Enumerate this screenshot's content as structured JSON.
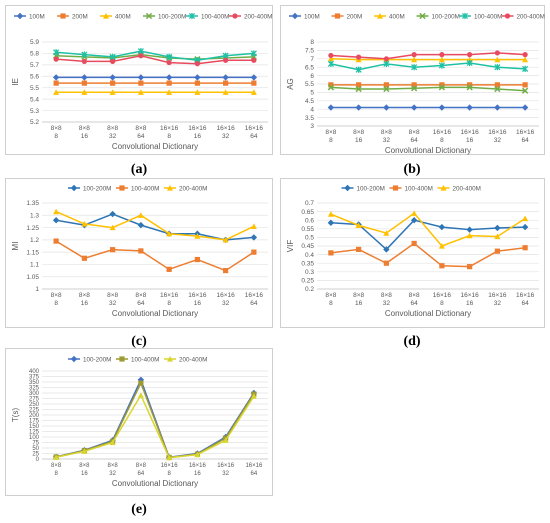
{
  "captions": [
    "(a)",
    "(b)",
    "(c)",
    "(d)",
    "(e)"
  ],
  "chart_data": [
    {
      "id": "a",
      "type": "line",
      "xlabel": "Convolutional Dictionary",
      "ylabel": "IE",
      "categories": [
        "8×8 8",
        "8×8 16",
        "8×8 32",
        "8×8 64",
        "16×16 8",
        "16×16 16",
        "16×16 32",
        "16×16 64"
      ],
      "ylim": [
        5.2,
        5.9
      ],
      "yticks": [
        "5.2",
        "5.3",
        "5.4",
        "5.5",
        "5.6",
        "5.7",
        "5.8",
        "5.9"
      ],
      "series": [
        {
          "name": "100M",
          "color": "#4472c4",
          "marker": "diamond",
          "values": [
            5.59,
            5.59,
            5.59,
            5.59,
            5.59,
            5.59,
            5.59,
            5.59
          ]
        },
        {
          "name": "200M",
          "color": "#ed7d31",
          "marker": "square",
          "values": [
            5.54,
            5.54,
            5.54,
            5.54,
            5.54,
            5.54,
            5.54,
            5.54
          ]
        },
        {
          "name": "400M",
          "color": "#ffc000",
          "marker": "triangle",
          "values": [
            5.46,
            5.46,
            5.46,
            5.46,
            5.46,
            5.46,
            5.46,
            5.46
          ]
        },
        {
          "name": "100-200M",
          "color": "#70ad47",
          "marker": "x",
          "values": [
            5.78,
            5.77,
            5.76,
            5.79,
            5.76,
            5.75,
            5.76,
            5.77
          ]
        },
        {
          "name": "100-400M",
          "color": "#1fc1a5",
          "marker": "star",
          "values": [
            5.81,
            5.79,
            5.77,
            5.82,
            5.77,
            5.74,
            5.78,
            5.8
          ]
        },
        {
          "name": "200-400M",
          "color": "#e84a5f",
          "marker": "circle",
          "values": [
            5.75,
            5.73,
            5.73,
            5.78,
            5.72,
            5.71,
            5.74,
            5.74
          ]
        }
      ]
    },
    {
      "id": "b",
      "type": "line",
      "xlabel": "Convolutional Dictionary",
      "ylabel": "AG",
      "categories": [
        "8×8 8",
        "8×8 16",
        "8×8 32",
        "8×8 64",
        "16×16 8",
        "16×16 16",
        "16×16 32",
        "16×16 64"
      ],
      "ylim": [
        3,
        8
      ],
      "yticks": [
        "3",
        "3.5",
        "4",
        "4.5",
        "5",
        "5.5",
        "6",
        "6.5",
        "7",
        "7.5",
        "8"
      ],
      "series": [
        {
          "name": "100M",
          "color": "#4472c4",
          "marker": "diamond",
          "values": [
            4.1,
            4.1,
            4.1,
            4.1,
            4.1,
            4.1,
            4.1,
            4.1
          ]
        },
        {
          "name": "200M",
          "color": "#ed7d31",
          "marker": "square",
          "values": [
            5.45,
            5.45,
            5.45,
            5.45,
            5.45,
            5.45,
            5.45,
            5.45
          ]
        },
        {
          "name": "400M",
          "color": "#ffc000",
          "marker": "triangle",
          "values": [
            7.0,
            6.95,
            6.95,
            6.95,
            6.95,
            6.95,
            6.95,
            6.95
          ]
        },
        {
          "name": "100-200M",
          "color": "#70ad47",
          "marker": "x",
          "values": [
            5.3,
            5.2,
            5.2,
            5.25,
            5.3,
            5.3,
            5.2,
            5.1
          ]
        },
        {
          "name": "100-400M",
          "color": "#1fc1a5",
          "marker": "star",
          "values": [
            6.7,
            6.35,
            6.7,
            6.5,
            6.6,
            6.75,
            6.5,
            6.4
          ]
        },
        {
          "name": "200-400M",
          "color": "#e84a5f",
          "marker": "circle",
          "values": [
            7.2,
            7.1,
            7.0,
            7.25,
            7.25,
            7.25,
            7.35,
            7.25
          ]
        }
      ]
    },
    {
      "id": "c",
      "type": "line",
      "xlabel": "Convolutional Dictionary",
      "ylabel": "MI",
      "categories": [
        "8×8 8",
        "8×8 16",
        "8×8 32",
        "8×8 64",
        "16×16 8",
        "16×16 16",
        "16×16 32",
        "16×16 64"
      ],
      "ylim": [
        1,
        1.35
      ],
      "yticks": [
        "1",
        "1.05",
        "1.1",
        "1.15",
        "1.2",
        "1.25",
        "1.3",
        "1.35"
      ],
      "series": [
        {
          "name": "100-200M",
          "color": "#2e75b6",
          "marker": "diamond",
          "values": [
            1.28,
            1.26,
            1.305,
            1.26,
            1.225,
            1.225,
            1.2,
            1.21
          ]
        },
        {
          "name": "100-400M",
          "color": "#ed7d31",
          "marker": "square",
          "values": [
            1.195,
            1.125,
            1.16,
            1.155,
            1.08,
            1.12,
            1.075,
            1.15
          ]
        },
        {
          "name": "200-400M",
          "color": "#ffc000",
          "marker": "triangle",
          "values": [
            1.315,
            1.265,
            1.25,
            1.3,
            1.225,
            1.215,
            1.2,
            1.255
          ]
        }
      ]
    },
    {
      "id": "d",
      "type": "line",
      "xlabel": "Convolutional Dictionary",
      "ylabel": "VIF",
      "categories": [
        "8×8 8",
        "8×8 16",
        "8×8 32",
        "8×8 64",
        "16×16 8",
        "16×16 16",
        "16×16 32",
        "16×16 64"
      ],
      "ylim": [
        0.2,
        0.7
      ],
      "yticks": [
        "0.2",
        "0.25",
        "0.3",
        "0.35",
        "0.4",
        "0.45",
        "0.5",
        "0.55",
        "0.6",
        "0.65",
        "0.7"
      ],
      "series": [
        {
          "name": "100-200M",
          "color": "#2e75b6",
          "marker": "diamond",
          "values": [
            0.585,
            0.575,
            0.43,
            0.6,
            0.56,
            0.545,
            0.555,
            0.56
          ]
        },
        {
          "name": "100-400M",
          "color": "#ed7d31",
          "marker": "square",
          "values": [
            0.41,
            0.43,
            0.35,
            0.465,
            0.335,
            0.33,
            0.42,
            0.44
          ]
        },
        {
          "name": "200-400M",
          "color": "#ffc000",
          "marker": "triangle",
          "values": [
            0.635,
            0.57,
            0.525,
            0.64,
            0.45,
            0.51,
            0.505,
            0.61
          ]
        }
      ]
    },
    {
      "id": "e",
      "type": "line",
      "xlabel": "Convolutional Dictionary",
      "ylabel": "T(s)",
      "categories": [
        "8×8 8",
        "8×8 16",
        "8×8 32",
        "8×8 64",
        "16×16 8",
        "16×16 16",
        "16×16 32",
        "16×16 64"
      ],
      "ylim": [
        0,
        400
      ],
      "yticks": [
        "0",
        "25",
        "50",
        "75",
        "100",
        "125",
        "150",
        "175",
        "200",
        "225",
        "250",
        "275",
        "300",
        "325",
        "350",
        "375",
        "400"
      ],
      "series": [
        {
          "name": "100-200M",
          "color": "#4472c4",
          "marker": "diamond",
          "values": [
            10,
            40,
            85,
            360,
            8,
            25,
            100,
            300
          ]
        },
        {
          "name": "100-400M",
          "color": "#9c9a32",
          "marker": "square",
          "values": [
            9,
            38,
            80,
            345,
            7,
            22,
            95,
            295
          ]
        },
        {
          "name": "200-400M",
          "color": "#d8d430",
          "marker": "triangle",
          "values": [
            8,
            35,
            75,
            290,
            6,
            20,
            85,
            285
          ]
        }
      ]
    }
  ]
}
